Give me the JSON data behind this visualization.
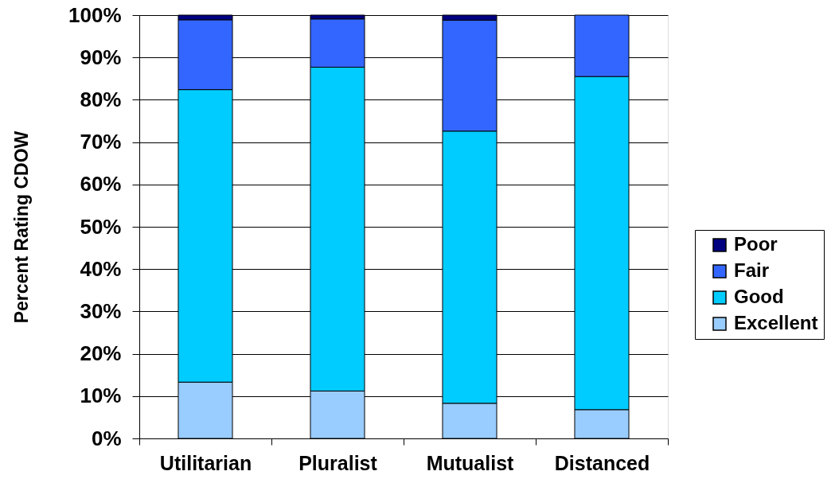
{
  "chart_data": {
    "type": "bar",
    "stacked": true,
    "ylabel": "Percent Rating CDOW",
    "categories": [
      "Utilitarian",
      "Pluralist",
      "Mutualist",
      "Distanced"
    ],
    "series": [
      {
        "name": "Excellent",
        "color": "#99ccff",
        "values": [
          13.3,
          11.2,
          8.3,
          6.8
        ]
      },
      {
        "name": "Good",
        "color": "#00ccff",
        "values": [
          69.1,
          76.5,
          64.3,
          78.7
        ]
      },
      {
        "name": "Fair",
        "color": "#3366ff",
        "values": [
          16.5,
          11.4,
          26.2,
          14.5
        ]
      },
      {
        "name": "Poor",
        "color": "#000080",
        "values": [
          1.1,
          0.9,
          1.2,
          null
        ]
      }
    ],
    "ylim": [
      0,
      100
    ],
    "yticks": [
      {
        "value": 0,
        "label": "0%"
      },
      {
        "value": 10,
        "label": "10%"
      },
      {
        "value": 20,
        "label": "20%"
      },
      {
        "value": 30,
        "label": "30%"
      },
      {
        "value": 40,
        "label": "40%"
      },
      {
        "value": 50,
        "label": "50%"
      },
      {
        "value": 60,
        "label": "60%"
      },
      {
        "value": 70,
        "label": "70%"
      },
      {
        "value": 80,
        "label": "80%"
      },
      {
        "value": 90,
        "label": "90%"
      },
      {
        "value": 100,
        "label": "100%"
      }
    ],
    "grid": "y",
    "legend": "right"
  }
}
